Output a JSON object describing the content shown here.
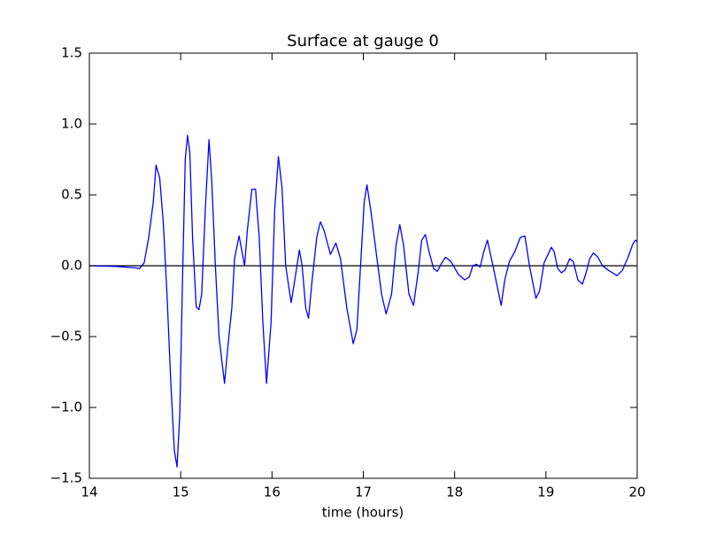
{
  "chart_data": {
    "type": "line",
    "title": "Surface at gauge 0",
    "xlabel": "time (hours)",
    "xlim": [
      14,
      20
    ],
    "xticks": [
      14,
      15,
      16,
      17,
      18,
      19,
      20
    ],
    "ylim": [
      -1.5,
      1.5
    ],
    "yticks": [
      {
        "value": -1.5,
        "label": "−1.5"
      },
      {
        "value": -1.0,
        "label": "−1.0"
      },
      {
        "value": -0.5,
        "label": "−0.5"
      },
      {
        "value": 0.0,
        "label": "0.0"
      },
      0.5,
      {
        "value": 1.0,
        "label": "1.0"
      },
      1.5
    ],
    "grid": false,
    "reference_line": {
      "y": 0,
      "color": "#000000"
    },
    "x": [
      14.0,
      14.3,
      14.5,
      14.55,
      14.6,
      14.65,
      14.7,
      14.73,
      14.77,
      14.81,
      14.85,
      14.89,
      14.93,
      14.96,
      14.99,
      15.02,
      15.05,
      15.075,
      15.1,
      15.13,
      15.17,
      15.2,
      15.23,
      15.27,
      15.31,
      15.34,
      15.38,
      15.42,
      15.48,
      15.52,
      15.56,
      15.59,
      15.64,
      15.7,
      15.73,
      15.78,
      15.82,
      15.86,
      15.9,
      15.94,
      15.99,
      16.03,
      16.07,
      16.11,
      16.15,
      16.21,
      16.25,
      16.3,
      16.33,
      16.37,
      16.4,
      16.44,
      16.49,
      16.53,
      16.57,
      16.64,
      16.67,
      16.7,
      16.75,
      16.82,
      16.89,
      16.93,
      16.97,
      17.01,
      17.04,
      17.08,
      17.15,
      17.2,
      17.25,
      17.31,
      17.36,
      17.4,
      17.44,
      17.5,
      17.55,
      17.6,
      17.64,
      17.68,
      17.72,
      17.77,
      17.81,
      17.86,
      17.9,
      17.96,
      18.04,
      18.11,
      18.16,
      18.2,
      18.24,
      18.28,
      18.32,
      18.36,
      18.42,
      18.51,
      18.55,
      18.6,
      18.66,
      18.72,
      18.77,
      18.82,
      18.89,
      18.93,
      18.98,
      19.06,
      19.09,
      19.13,
      19.17,
      19.21,
      19.26,
      19.3,
      19.35,
      19.4,
      19.44,
      19.48,
      19.52,
      19.57,
      19.62,
      19.68,
      19.73,
      19.78,
      19.84,
      19.9,
      19.95,
      19.98,
      20.0
    ],
    "series": [
      {
        "color": "#0000ff",
        "values": [
          0,
          -0.005,
          -0.015,
          -0.02,
          0.02,
          0.2,
          0.45,
          0.71,
          0.62,
          0.3,
          -0.2,
          -0.8,
          -1.3,
          -1.42,
          -1.05,
          -0.1,
          0.75,
          0.92,
          0.8,
          0.2,
          -0.29,
          -0.31,
          -0.2,
          0.4,
          0.89,
          0.6,
          0.0,
          -0.5,
          -0.83,
          -0.55,
          -0.3,
          0.05,
          0.21,
          0.0,
          0.25,
          0.54,
          0.54,
          0.2,
          -0.4,
          -0.83,
          -0.4,
          0.4,
          0.77,
          0.55,
          0.0,
          -0.26,
          -0.1,
          0.11,
          0.0,
          -0.3,
          -0.37,
          -0.1,
          0.2,
          0.31,
          0.25,
          0.08,
          0.12,
          0.16,
          0.05,
          -0.3,
          -0.55,
          -0.45,
          0.0,
          0.45,
          0.57,
          0.4,
          0.05,
          -0.2,
          -0.34,
          -0.2,
          0.15,
          0.29,
          0.15,
          -0.2,
          -0.28,
          -0.05,
          0.18,
          0.22,
          0.1,
          -0.02,
          -0.04,
          0.02,
          0.06,
          0.03,
          -0.06,
          -0.1,
          -0.08,
          0.0,
          0.01,
          -0.01,
          0.1,
          0.18,
          0.0,
          -0.28,
          -0.1,
          0.03,
          0.1,
          0.2,
          0.21,
          0.0,
          -0.23,
          -0.18,
          0.02,
          0.13,
          0.1,
          -0.02,
          -0.05,
          -0.03,
          0.05,
          0.03,
          -0.1,
          -0.13,
          -0.05,
          0.05,
          0.09,
          0.06,
          0.0,
          -0.03,
          -0.05,
          -0.07,
          -0.03,
          0.06,
          0.15,
          0.18,
          0.17
        ]
      }
    ]
  }
}
